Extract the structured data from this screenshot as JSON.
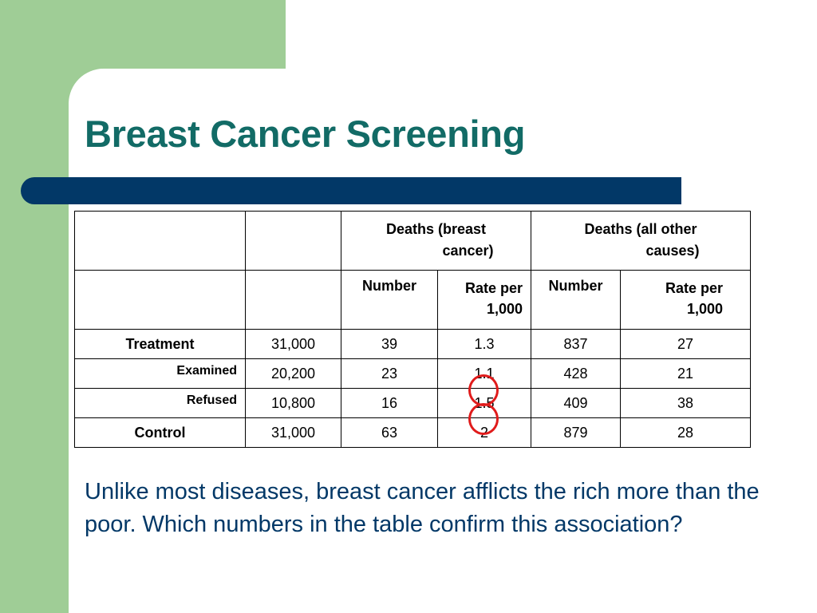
{
  "slide": {
    "title": "Breast Cancer Screening",
    "body": "Unlike most diseases, breast cancer afflicts the rich more than the poor.  Which numbers in the table confirm this association?"
  },
  "table": {
    "group_headers": {
      "breast": [
        "Deaths (breast",
        "cancer)"
      ],
      "other": [
        "Deaths (all other",
        "causes)"
      ]
    },
    "sub_headers": {
      "number": "Number",
      "rate": [
        "Rate per",
        "1,000"
      ]
    },
    "rows": [
      {
        "label": "Treatment",
        "n": "31,000",
        "bc_number": "39",
        "bc_rate": "1.3",
        "oc_number": "837",
        "oc_rate": "27"
      },
      {
        "label": "Examined",
        "n": "20,200",
        "bc_number": "23",
        "bc_rate": "1.1",
        "oc_number": "428",
        "oc_rate": "21"
      },
      {
        "label": "Refused",
        "n": "10,800",
        "bc_number": "16",
        "bc_rate": "1.5",
        "oc_number": "409",
        "oc_rate": "38"
      },
      {
        "label": "Control",
        "n": "31,000",
        "bc_number": "63",
        "bc_rate": "2",
        "oc_number": "879",
        "oc_rate": "28"
      }
    ]
  },
  "colors": {
    "green_panel": "#9fcd96",
    "title": "#126b66",
    "bar": "#023867",
    "body_text": "#023867",
    "highlight_circle": "#e01b1b"
  }
}
